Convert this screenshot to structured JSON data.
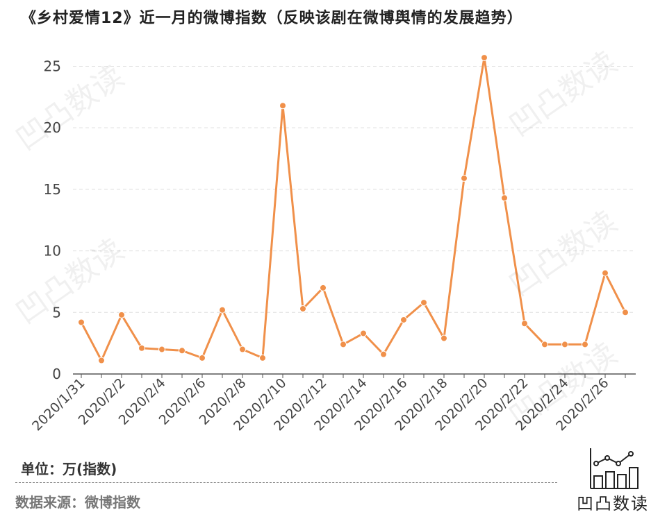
{
  "header": {
    "title": "《乡村爱情12》近一月的微博指数（反映该剧在微博舆情的发展趋势）"
  },
  "footer": {
    "unit": "单位：万(指数)",
    "source": "数据来源：微博指数",
    "logo_text": "凹凸数读"
  },
  "watermark": {
    "text": "凹凸数读"
  },
  "colors": {
    "line": "#F0904A",
    "grid": "#dddddd",
    "axis": "#555555",
    "tick_text": "#444444"
  },
  "chart_data": {
    "type": "line",
    "title": "《乡村爱情12》近一月的微博指数（反映该剧在微博舆情的发展趋势）",
    "ylabel": "单位：万(指数)",
    "ylim": [
      0,
      27
    ],
    "yticks": [
      0,
      5,
      10,
      15,
      20,
      25
    ],
    "grid": true,
    "x": [
      "2020/1/31",
      "2020/2/1",
      "2020/2/2",
      "2020/2/3",
      "2020/2/4",
      "2020/2/5",
      "2020/2/6",
      "2020/2/7",
      "2020/2/8",
      "2020/2/9",
      "2020/2/10",
      "2020/2/11",
      "2020/2/12",
      "2020/2/13",
      "2020/2/14",
      "2020/2/15",
      "2020/2/16",
      "2020/2/17",
      "2020/2/18",
      "2020/2/19",
      "2020/2/20",
      "2020/2/21",
      "2020/2/22",
      "2020/2/23",
      "2020/2/24",
      "2020/2/25",
      "2020/2/26",
      "2020/2/27"
    ],
    "xtick_labels": [
      "2020/1/31",
      "2020/2/2",
      "2020/2/4",
      "2020/2/6",
      "2020/2/8",
      "2020/2/10",
      "2020/2/12",
      "2020/2/14",
      "2020/2/16",
      "2020/2/18",
      "2020/2/20",
      "2020/2/22",
      "2020/2/24",
      "2020/2/26"
    ],
    "series": [
      {
        "values": [
          4.2,
          1.1,
          4.8,
          2.1,
          2.0,
          1.9,
          1.3,
          5.2,
          2.0,
          1.3,
          21.8,
          5.3,
          7.0,
          2.4,
          3.3,
          1.6,
          4.4,
          5.8,
          2.9,
          15.9,
          25.7,
          14.3,
          4.1,
          2.4,
          2.4,
          2.4,
          8.2,
          5.0
        ]
      }
    ]
  }
}
